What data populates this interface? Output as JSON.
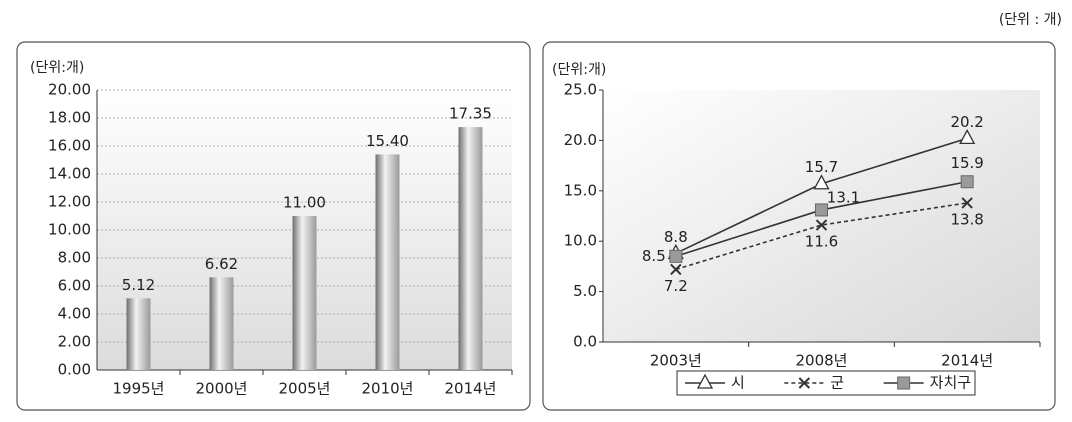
{
  "unit_note": "(단위 : 개)",
  "chart_data": [
    {
      "type": "bar",
      "subtitle": "(단위:개)",
      "categories": [
        "1995년",
        "2000년",
        "2005년",
        "2010년",
        "2014년"
      ],
      "values": [
        5.12,
        6.62,
        11,
        15.4,
        17.35
      ],
      "value_labels": [
        "5.12",
        "6.62",
        "11.00",
        "15.40",
        "17.35"
      ],
      "color": "#9a9a9a",
      "ylim": [
        0,
        20
      ],
      "yticks": [
        {
          "value": 0,
          "label": "0.00"
        },
        {
          "value": 2,
          "label": "2.00"
        },
        {
          "value": 4,
          "label": "4.00"
        },
        {
          "value": 6,
          "label": "6.00"
        },
        {
          "value": 8,
          "label": "8.00"
        },
        {
          "value": 10,
          "label": "10.00"
        },
        {
          "value": 12,
          "label": "12.00"
        },
        {
          "value": 14,
          "label": "14.00"
        },
        {
          "value": 16,
          "label": "16.00"
        },
        {
          "value": 18,
          "label": "18.00"
        },
        {
          "value": 20,
          "label": "20.00"
        }
      ],
      "grid": true
    },
    {
      "type": "line",
      "subtitle": "(단위:개)",
      "categories": [
        "2003년",
        "2008년",
        "2014년"
      ],
      "series": [
        {
          "name": "시",
          "color": "#333333",
          "marker": "triangle",
          "dashed": false,
          "values": [
            8.8,
            15.7,
            20.2
          ]
        },
        {
          "name": "군",
          "color": "#333333",
          "marker": "x",
          "dashed": true,
          "values": [
            7.2,
            11.6,
            13.8
          ]
        },
        {
          "name": "자치구",
          "color": "#333333",
          "marker": "square",
          "dashed": false,
          "values": [
            8.5,
            13.1,
            15.9
          ]
        }
      ],
      "ylim": [
        0,
        25
      ],
      "yticks": [
        {
          "value": 0,
          "label": "0.0"
        },
        {
          "value": 5,
          "label": "5.0"
        },
        {
          "value": 10,
          "label": "10.0"
        },
        {
          "value": 15,
          "label": "15.0"
        },
        {
          "value": 20,
          "label": "20.0"
        },
        {
          "value": 25,
          "label": "25.0"
        }
      ],
      "grid": false,
      "legend": "bottom"
    }
  ]
}
